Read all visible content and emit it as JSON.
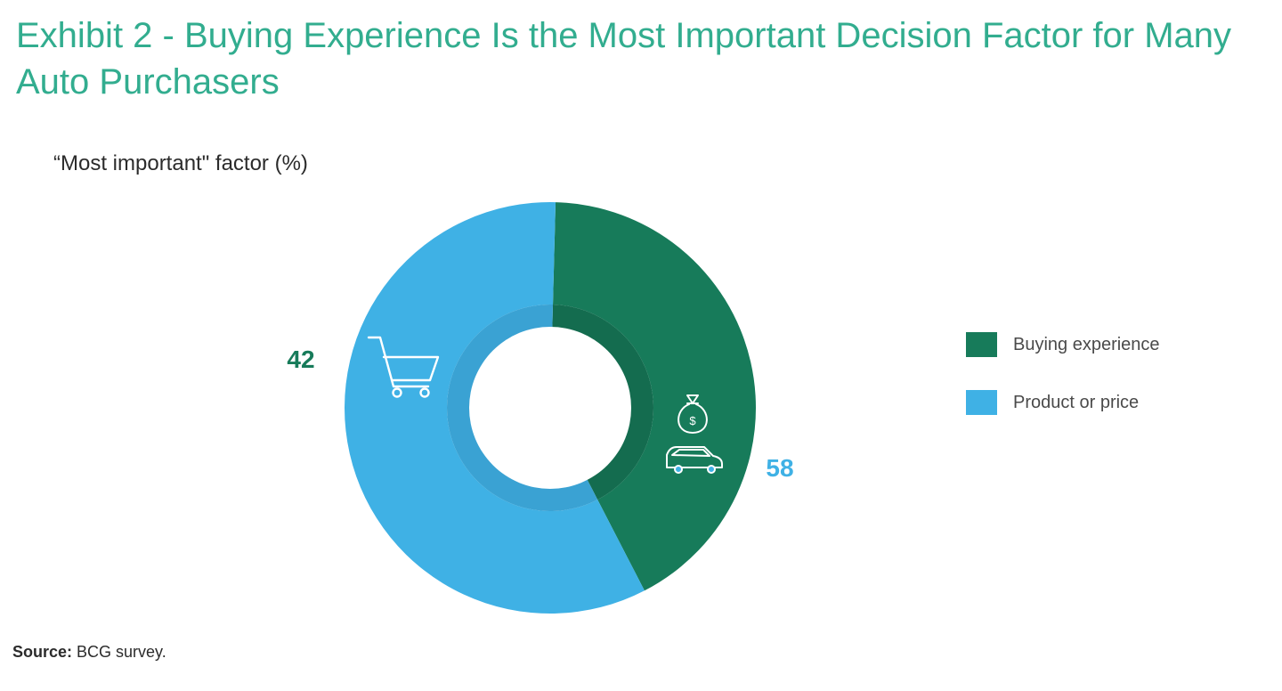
{
  "title": "Exhibit 2 - Buying Experience Is the Most Important Decision Factor for Many Auto Purchasers",
  "colors": {
    "title": "#32ad8f",
    "buying": "#177b5a",
    "buying_inner": "#146c4f",
    "product": "#3fb1e5",
    "product_inner": "#3aa2d3"
  },
  "chart_data": {
    "type": "pie",
    "variant": "donut",
    "title": "“Most important\" factor (%)",
    "categories": [
      "Buying experience",
      "Product or price"
    ],
    "values": [
      42,
      58
    ],
    "unit": "%",
    "legend_position": "right",
    "slice_icons": [
      [
        "cart-icon"
      ],
      [
        "money-bag-icon",
        "car-icon"
      ]
    ]
  },
  "source": {
    "label": "Source:",
    "text": " BCG survey."
  }
}
